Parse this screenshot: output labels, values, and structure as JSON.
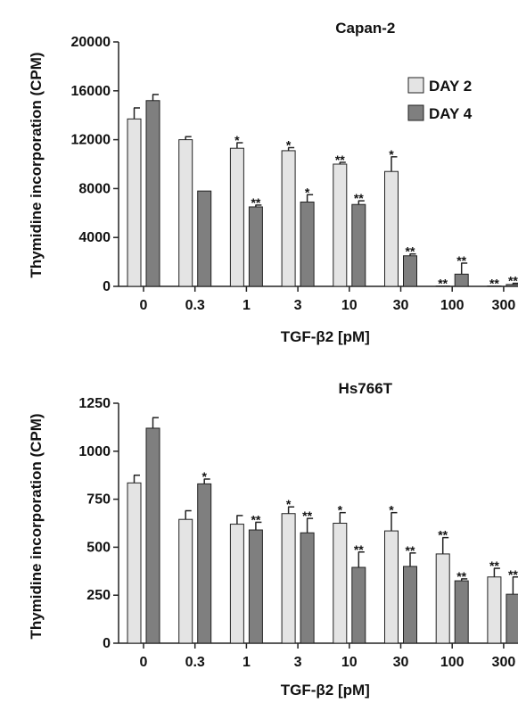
{
  "colors": {
    "day2": "#e4e4e4",
    "day4": "#7f7f7f",
    "stroke": "#222222"
  },
  "chart_data": [
    {
      "type": "bar",
      "title": "Capan-2",
      "xlabel": "TGF-β2 [pM]",
      "ylabel": "Thymidine incorporation (CPM)",
      "categories": [
        "0",
        "0.3",
        "1",
        "3",
        "10",
        "30",
        "100",
        "300"
      ],
      "ylim": [
        0,
        20000
      ],
      "yticks": [
        0,
        4000,
        8000,
        12000,
        16000,
        20000
      ],
      "legend": "top-right",
      "series": [
        {
          "name": "DAY 2",
          "values": [
            13700,
            12000,
            11300,
            11100,
            10000,
            9400,
            30,
            30
          ],
          "errors": [
            900,
            250,
            450,
            250,
            150,
            1200,
            0,
            0
          ],
          "marks": [
            "",
            "",
            "*",
            "*",
            "**",
            "*",
            "**",
            "**"
          ]
        },
        {
          "name": "DAY 4",
          "values": [
            15200,
            7800,
            6500,
            6900,
            6700,
            2500,
            1000,
            150
          ],
          "errors": [
            500,
            0,
            150,
            600,
            300,
            150,
            900,
            100
          ],
          "marks": [
            "",
            "",
            "**",
            "*",
            "**",
            "**",
            "**",
            "**"
          ]
        }
      ]
    },
    {
      "type": "bar",
      "title": "Hs766T",
      "xlabel": "TGF-β2 [pM]",
      "ylabel": "Thymidine incorporation (CPM)",
      "categories": [
        "0",
        "0.3",
        "1",
        "3",
        "10",
        "30",
        "100",
        "300"
      ],
      "ylim": [
        0,
        1250
      ],
      "yticks": [
        0,
        250,
        500,
        750,
        1000,
        1250
      ],
      "series": [
        {
          "name": "DAY 2",
          "values": [
            835,
            645,
            620,
            675,
            625,
            585,
            465,
            345
          ],
          "errors": [
            40,
            45,
            45,
            35,
            55,
            95,
            85,
            45
          ],
          "marks": [
            "",
            "",
            "",
            "*",
            "*",
            "*",
            "**",
            "**"
          ]
        },
        {
          "name": "DAY 4",
          "values": [
            1120,
            830,
            590,
            575,
            395,
            400,
            325,
            255
          ],
          "errors": [
            55,
            25,
            40,
            75,
            80,
            70,
            10,
            90
          ],
          "marks": [
            "",
            "*",
            "**",
            "**",
            "**",
            "**",
            "**",
            "**"
          ]
        }
      ]
    }
  ]
}
